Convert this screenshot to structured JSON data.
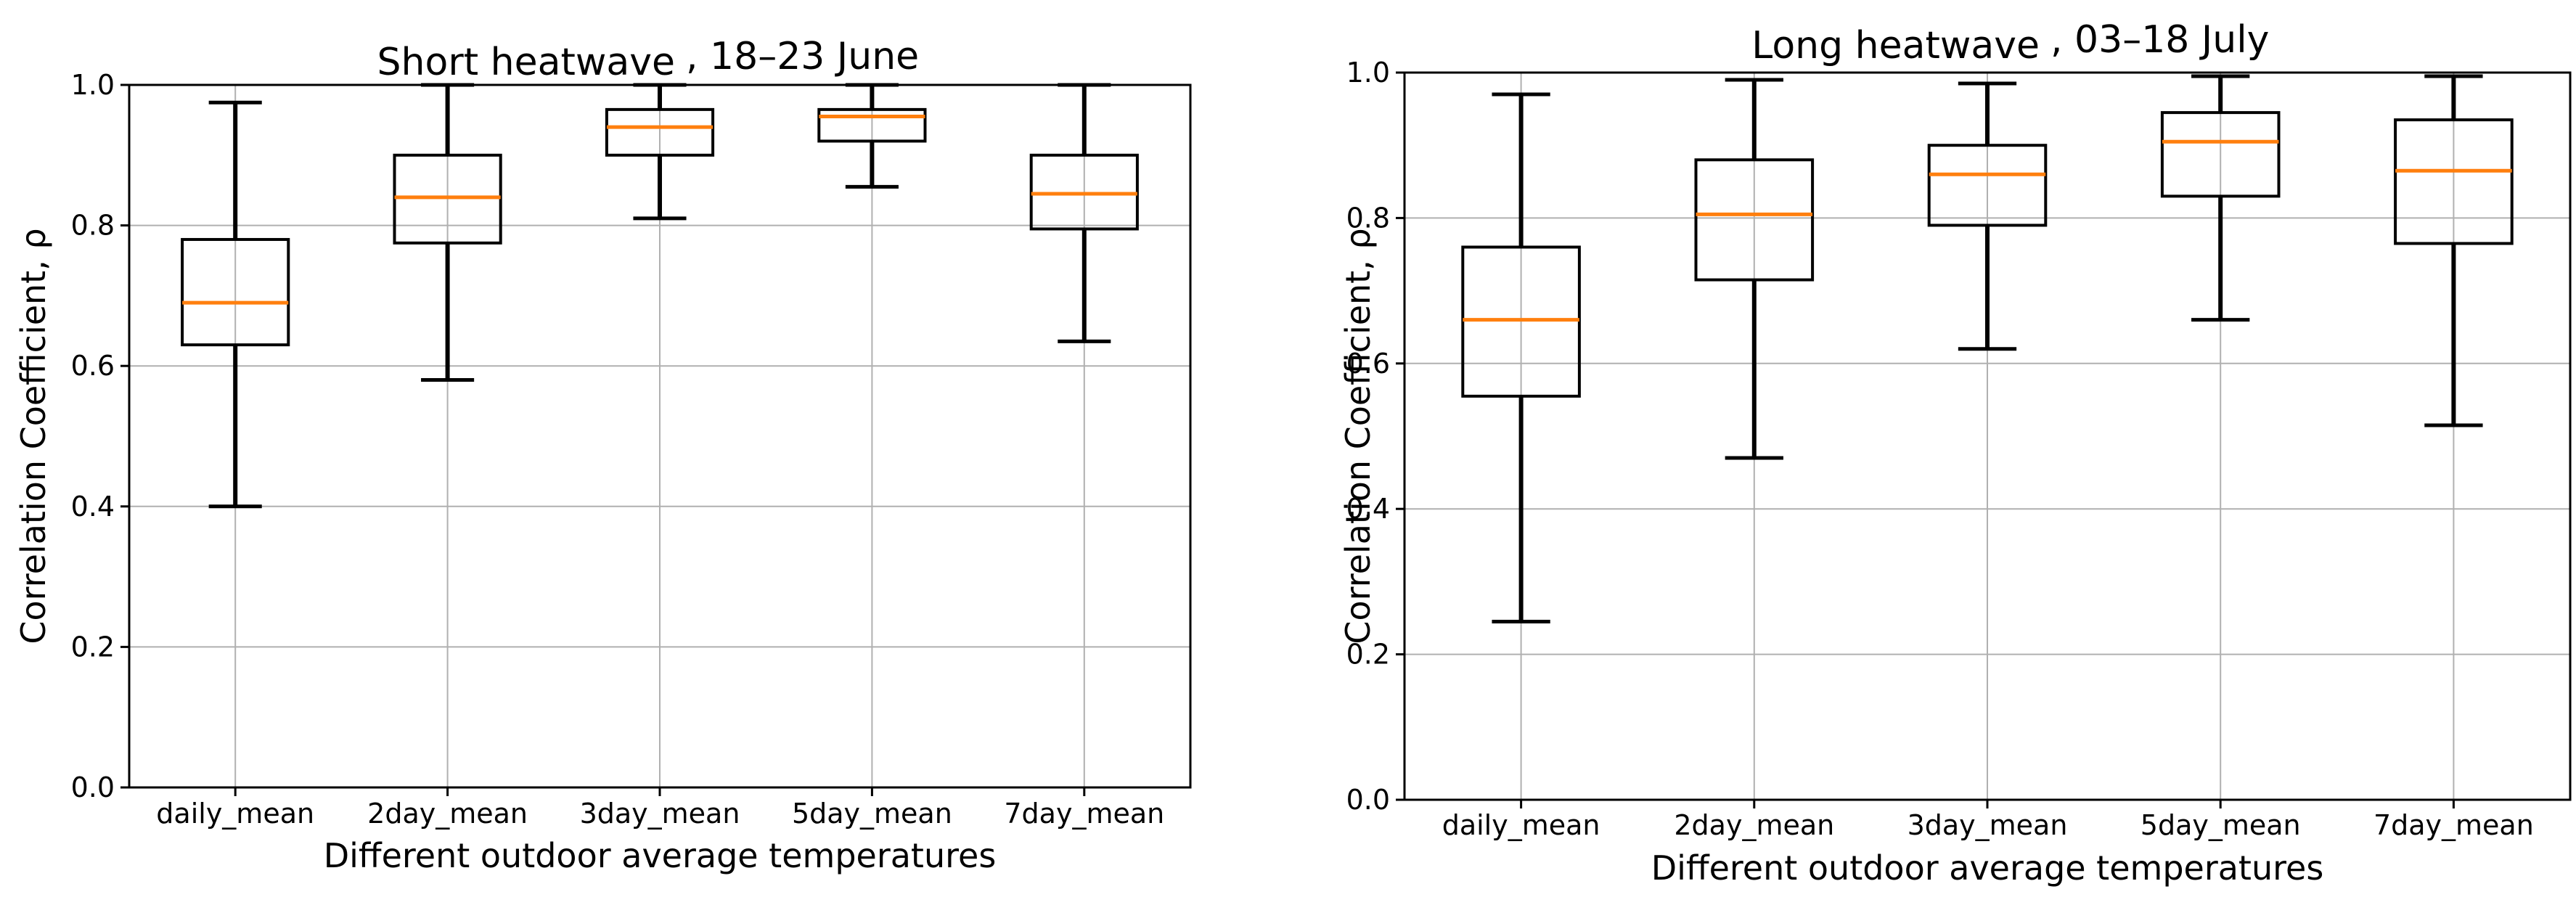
{
  "chart_data": [
    {
      "type": "box",
      "title": "Short heatwave",
      "subtitle": ", 18–23 June",
      "xlabel": "Different outdoor average temperatures",
      "ylabel": "Correlation Coefficient, ρ",
      "ylim": [
        0.0,
        1.0
      ],
      "yticks": [
        "0.0",
        "0.2",
        "0.4",
        "0.6",
        "0.8",
        "1.0"
      ],
      "grid": true,
      "categories": [
        "daily_mean",
        "2day_mean",
        "3day_mean",
        "5day_mean",
        "7day_mean"
      ],
      "boxes": [
        {
          "whisker_low": 0.4,
          "q1": 0.63,
          "median": 0.69,
          "q3": 0.78,
          "whisker_high": 0.975
        },
        {
          "whisker_low": 0.58,
          "q1": 0.775,
          "median": 0.84,
          "q3": 0.9,
          "whisker_high": 1.0
        },
        {
          "whisker_low": 0.81,
          "q1": 0.9,
          "median": 0.94,
          "q3": 0.965,
          "whisker_high": 1.0
        },
        {
          "whisker_low": 0.855,
          "q1": 0.92,
          "median": 0.955,
          "q3": 0.965,
          "whisker_high": 1.0
        },
        {
          "whisker_low": 0.635,
          "q1": 0.795,
          "median": 0.845,
          "q3": 0.9,
          "whisker_high": 1.0
        }
      ]
    },
    {
      "type": "box",
      "title": "Long heatwave",
      "subtitle": ", 03–18 July",
      "xlabel": "Different outdoor average temperatures",
      "ylabel": "Correlation Coefficient, ρ",
      "ylim": [
        0.0,
        1.0
      ],
      "yticks": [
        "0.0",
        "0.2",
        "0.4",
        "0.6",
        "0.8",
        "1.0"
      ],
      "grid": true,
      "categories": [
        "daily_mean",
        "2day_mean",
        "3day_mean",
        "5day_mean",
        "7day_mean"
      ],
      "boxes": [
        {
          "whisker_low": 0.245,
          "q1": 0.555,
          "median": 0.66,
          "q3": 0.76,
          "whisker_high": 0.97
        },
        {
          "whisker_low": 0.47,
          "q1": 0.715,
          "median": 0.805,
          "q3": 0.88,
          "whisker_high": 0.99
        },
        {
          "whisker_low": 0.62,
          "q1": 0.79,
          "median": 0.86,
          "q3": 0.9,
          "whisker_high": 0.985
        },
        {
          "whisker_low": 0.66,
          "q1": 0.83,
          "median": 0.905,
          "q3": 0.945,
          "whisker_high": 0.995
        },
        {
          "whisker_low": 0.515,
          "q1": 0.765,
          "median": 0.865,
          "q3": 0.935,
          "whisker_high": 0.995
        }
      ]
    }
  ],
  "colors": {
    "median": "#ff7f0e",
    "box": "#000000",
    "grid": "#b0b0b0",
    "background": "#ffffff"
  }
}
